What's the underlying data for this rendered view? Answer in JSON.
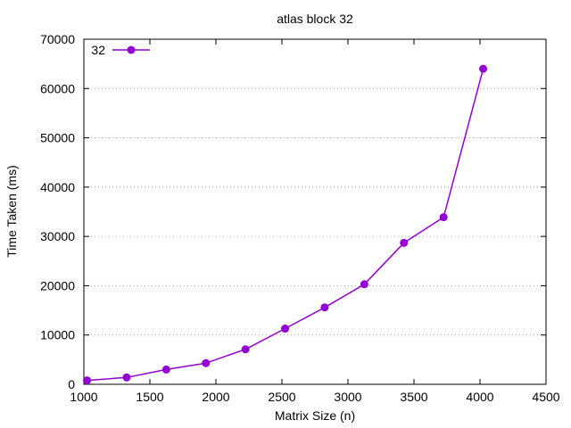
{
  "chart_data": {
    "type": "line",
    "title": "atlas block 32",
    "xlabel": "Matrix Size (n)",
    "ylabel": "Time Taken (ms)",
    "xlim": [
      1000,
      4500
    ],
    "ylim": [
      0,
      70000
    ],
    "x_ticks": [
      1000,
      1500,
      2000,
      2500,
      3000,
      3500,
      4000,
      4500
    ],
    "y_ticks": [
      0,
      10000,
      20000,
      30000,
      40000,
      50000,
      60000,
      70000
    ],
    "grid": "horizontal-dotted",
    "legend_position": "top-left",
    "series": [
      {
        "name": "32",
        "color": "#9400d3",
        "marker": "circle",
        "x": [
          1024,
          1324,
          1624,
          1924,
          2224,
          2524,
          2824,
          3124,
          3424,
          3724,
          4024
        ],
        "y": [
          800,
          1400,
          3000,
          4300,
          7100,
          11300,
          15600,
          20300,
          28700,
          33900,
          64000
        ]
      }
    ]
  }
}
